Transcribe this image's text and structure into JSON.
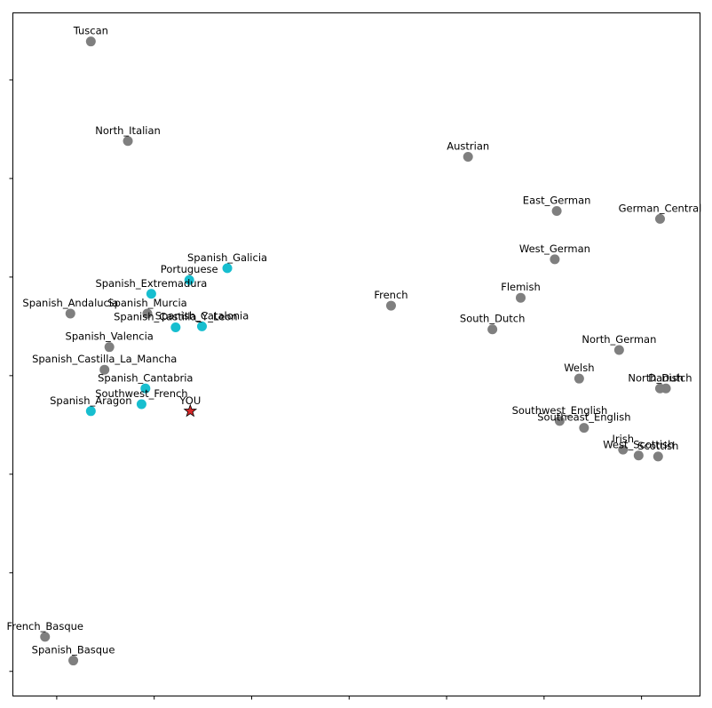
{
  "chart_data": {
    "type": "scatter",
    "title": "",
    "xlabel": "",
    "ylabel": "",
    "xlim": [
      -0.45,
      6.6
    ],
    "ylim": [
      0.25,
      7.18
    ],
    "xticks": [
      0,
      1,
      2,
      3,
      4,
      5,
      6
    ],
    "yticks": [
      0.5,
      1.5,
      2.5,
      3.5,
      4.5,
      5.5,
      6.5
    ],
    "tick_labels_visible": false,
    "grid": false,
    "legend": "none",
    "colors": {
      "highlight": "#17becf",
      "other": "#7f7f7f",
      "you": "#d62728"
    },
    "points": [
      {
        "label": "Tuscan",
        "x": 0.35,
        "y": 6.89,
        "group": "other"
      },
      {
        "label": "North_Italian",
        "x": 0.73,
        "y": 5.88,
        "group": "other"
      },
      {
        "label": "Austrian",
        "x": 4.22,
        "y": 5.72,
        "group": "other"
      },
      {
        "label": "East_German",
        "x": 5.13,
        "y": 5.17,
        "group": "other"
      },
      {
        "label": "German_Central",
        "x": 6.19,
        "y": 5.09,
        "group": "other"
      },
      {
        "label": "West_German",
        "x": 5.11,
        "y": 4.68,
        "group": "other"
      },
      {
        "label": "Spanish_Galicia",
        "x": 1.75,
        "y": 4.59,
        "group": "highlight"
      },
      {
        "label": "Portuguese",
        "x": 1.36,
        "y": 4.47,
        "group": "highlight"
      },
      {
        "label": "Spanish_Extremadura",
        "x": 0.97,
        "y": 4.33,
        "group": "highlight"
      },
      {
        "label": "Flemish",
        "x": 4.76,
        "y": 4.29,
        "group": "other"
      },
      {
        "label": "French",
        "x": 3.43,
        "y": 4.21,
        "group": "other"
      },
      {
        "label": "Spanish_Andalucia",
        "x": 0.14,
        "y": 4.13,
        "group": "other"
      },
      {
        "label": "Spanish_Murcia",
        "x": 0.93,
        "y": 4.13,
        "group": "other"
      },
      {
        "label": "Spanish_Castilla_Y_Leon",
        "x": 1.22,
        "y": 3.99,
        "group": "highlight"
      },
      {
        "label": "Spanish_Catalonia",
        "x": 1.49,
        "y": 4.0,
        "group": "highlight"
      },
      {
        "label": "South_Dutch",
        "x": 4.47,
        "y": 3.97,
        "group": "other"
      },
      {
        "label": "Spanish_Valencia",
        "x": 0.54,
        "y": 3.79,
        "group": "other"
      },
      {
        "label": "North_German",
        "x": 5.77,
        "y": 3.76,
        "group": "other"
      },
      {
        "label": "Spanish_Castilla_La_Mancha",
        "x": 0.49,
        "y": 3.56,
        "group": "other"
      },
      {
        "label": "Welsh",
        "x": 5.36,
        "y": 3.47,
        "group": "other"
      },
      {
        "label": "Spanish_Cantabria",
        "x": 0.91,
        "y": 3.37,
        "group": "highlight"
      },
      {
        "label": "Danish",
        "x": 6.25,
        "y": 3.37,
        "group": "other"
      },
      {
        "label": "North_Dutch",
        "x": 6.19,
        "y": 3.37,
        "group": "other"
      },
      {
        "label": "Southwest_French",
        "x": 0.87,
        "y": 3.21,
        "group": "highlight"
      },
      {
        "label": "Spanish_Aragon",
        "x": 0.35,
        "y": 3.14,
        "group": "highlight"
      },
      {
        "label": "Southwest_English",
        "x": 5.16,
        "y": 3.04,
        "group": "other"
      },
      {
        "label": "Southeast_English",
        "x": 5.41,
        "y": 2.97,
        "group": "other"
      },
      {
        "label": "Irish",
        "x": 5.81,
        "y": 2.75,
        "group": "other"
      },
      {
        "label": "West_Scottish",
        "x": 5.97,
        "y": 2.69,
        "group": "other"
      },
      {
        "label": "Scottish",
        "x": 6.17,
        "y": 2.68,
        "group": "other"
      },
      {
        "label": "YOU",
        "x": 1.37,
        "y": 3.14,
        "group": "you"
      },
      {
        "label": "French_Basque",
        "x": -0.12,
        "y": 0.85,
        "group": "other"
      },
      {
        "label": "Spanish_Basque",
        "x": 0.17,
        "y": 0.61,
        "group": "other"
      }
    ]
  }
}
